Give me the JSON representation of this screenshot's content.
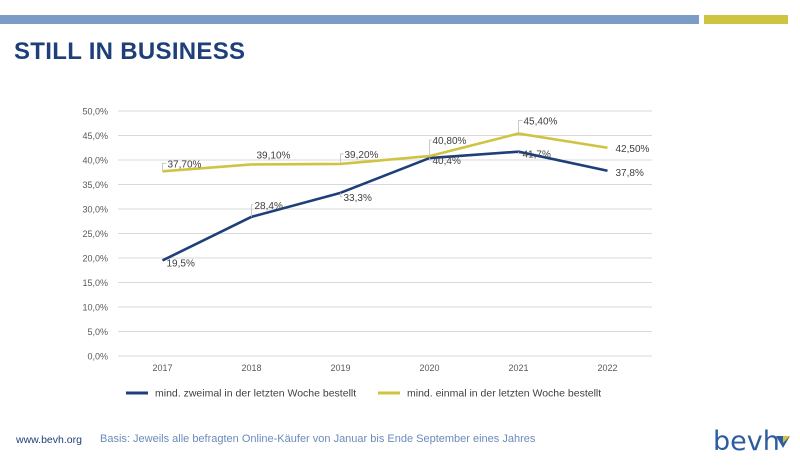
{
  "header": {
    "title": "STILL IN BUSINESS",
    "bar_colors": {
      "primary": "#7b9cc4",
      "accent": "#cfc441"
    }
  },
  "footer": {
    "url": "www.bevh.org",
    "note": "Basis: Jeweils alle befragten Online-Käufer von Januar bis Ende September eines Jahres"
  },
  "logo": {
    "text": "bevh",
    "icon": "bevh-logo-mark-icon"
  },
  "chart_data": {
    "type": "line",
    "categories": [
      "2017",
      "2018",
      "2019",
      "2020",
      "2021",
      "2022"
    ],
    "ylim": [
      0,
      50
    ],
    "y_ticks": [
      "0,0%",
      "5,0%",
      "10,0%",
      "15,0%",
      "20,0%",
      "25,0%",
      "30,0%",
      "35,0%",
      "40,0%",
      "45,0%",
      "50,0%"
    ],
    "grid": true,
    "legend_placement": "bottom",
    "series": [
      {
        "name": "mind. zweimal in der letzten Woche bestellt",
        "color": "#1e3f7a",
        "values": [
          19.5,
          28.4,
          33.3,
          40.4,
          41.7,
          37.8
        ],
        "labels": [
          "19,5%",
          "28,4%",
          "33,3%",
          "40,4%",
          "41,7%",
          "37,8%"
        ]
      },
      {
        "name": "mind. einmal in der letzten Woche bestellt",
        "color": "#cfc441",
        "values": [
          37.7,
          39.1,
          39.2,
          40.8,
          45.4,
          42.5
        ],
        "labels": [
          "37,70%",
          "39,10%",
          "39,20%",
          "40,80%",
          "45,40%",
          "42,50%"
        ]
      }
    ]
  }
}
